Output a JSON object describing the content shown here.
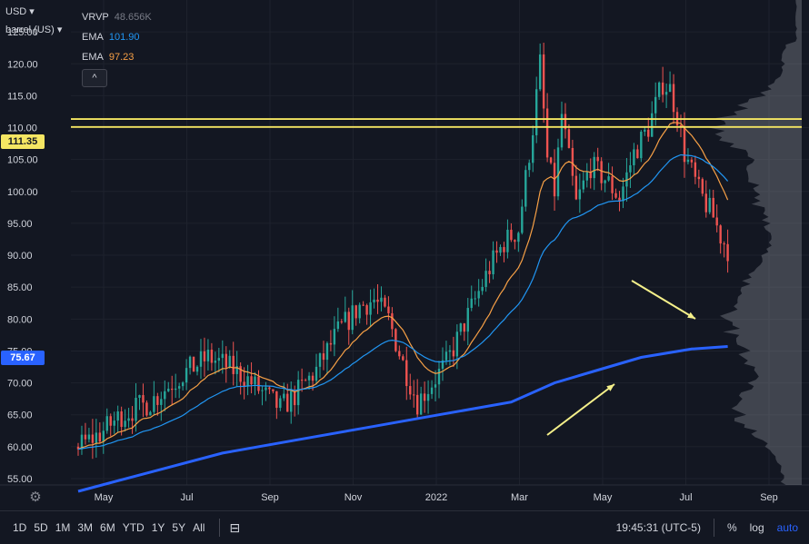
{
  "header": {
    "currency": "USD",
    "unit": "barrel (US)",
    "collapse_symbol": "^"
  },
  "legend": [
    {
      "label": "VRVP",
      "value": "48.656K",
      "color": "#787b86"
    },
    {
      "label": "EMA",
      "value": "101.90",
      "color": "#2196f3"
    },
    {
      "label": "EMA",
      "value": "97.23",
      "color": "#f7a046"
    }
  ],
  "price_tags": [
    {
      "value": "111.35",
      "bg": "#f5e663",
      "fg": "#131722"
    },
    {
      "value": "75.67",
      "bg": "#2962ff",
      "fg": "#ffffff"
    }
  ],
  "toolbar": {
    "timeframes": [
      "1D",
      "5D",
      "1M",
      "3M",
      "6M",
      "YTD",
      "1Y",
      "5Y",
      "All"
    ],
    "clock": "19:45:31 (UTC-5)",
    "percent": "%",
    "log": "log",
    "auto": "auto"
  },
  "colors": {
    "background": "#131722",
    "up": "#26a69a",
    "down": "#ef5350",
    "ema_fast": "#f7a046",
    "ema_slow": "#2196f3",
    "long_ma": "#2962ff",
    "horizontal_lines": "#f5e663",
    "arrows": "#f5f08a",
    "volume_profile": "#9598a1"
  },
  "chart_data": {
    "type": "candlestick",
    "y_ticks": [
      "125.00",
      "120.00",
      "115.00",
      "110.00",
      "105.00",
      "100.00",
      "95.00",
      "90.00",
      "85.00",
      "80.00",
      "75.00",
      "70.00",
      "65.00",
      "60.00",
      "55.00"
    ],
    "ylim": [
      54,
      130
    ],
    "x_labels": [
      "May",
      "Jul",
      "Sep",
      "Nov",
      "2022",
      "Mar",
      "May",
      "Jul",
      "Sep"
    ],
    "horizontal_levels": [
      111.35,
      110.1
    ],
    "close_path": [
      {
        "t": 0,
        "v": 60
      },
      {
        "t": 3,
        "v": 62
      },
      {
        "t": 6,
        "v": 65
      },
      {
        "t": 10,
        "v": 67
      },
      {
        "t": 14,
        "v": 71
      },
      {
        "t": 18,
        "v": 74
      },
      {
        "t": 20,
        "v": 73
      },
      {
        "t": 23,
        "v": 71
      },
      {
        "t": 26,
        "v": 68
      },
      {
        "t": 28,
        "v": 66
      },
      {
        "t": 30,
        "v": 68
      },
      {
        "t": 33,
        "v": 72
      },
      {
        "t": 36,
        "v": 78
      },
      {
        "t": 39,
        "v": 82
      },
      {
        "t": 41,
        "v": 83
      },
      {
        "t": 43,
        "v": 80
      },
      {
        "t": 45,
        "v": 73
      },
      {
        "t": 47,
        "v": 67
      },
      {
        "t": 49,
        "v": 70
      },
      {
        "t": 51,
        "v": 73
      },
      {
        "t": 53,
        "v": 78
      },
      {
        "t": 55,
        "v": 83
      },
      {
        "t": 57,
        "v": 88
      },
      {
        "t": 59,
        "v": 92
      },
      {
        "t": 61,
        "v": 94
      },
      {
        "t": 63,
        "v": 110
      },
      {
        "t": 64,
        "v": 120
      },
      {
        "t": 65,
        "v": 105
      },
      {
        "t": 66,
        "v": 100
      },
      {
        "t": 67,
        "v": 112
      },
      {
        "t": 69,
        "v": 98
      },
      {
        "t": 71,
        "v": 104
      },
      {
        "t": 73,
        "v": 102
      },
      {
        "t": 75,
        "v": 99
      },
      {
        "t": 77,
        "v": 106
      },
      {
        "t": 79,
        "v": 110
      },
      {
        "t": 81,
        "v": 117
      },
      {
        "t": 82,
        "v": 116
      },
      {
        "t": 83,
        "v": 112
      },
      {
        "t": 84,
        "v": 106
      },
      {
        "t": 86,
        "v": 100
      },
      {
        "t": 88,
        "v": 96
      },
      {
        "t": 89,
        "v": 93
      },
      {
        "t": 90,
        "v": 91
      }
    ],
    "long_ma": [
      {
        "t": 0,
        "v": 53
      },
      {
        "t": 10,
        "v": 56
      },
      {
        "t": 20,
        "v": 59
      },
      {
        "t": 30,
        "v": 61
      },
      {
        "t": 40,
        "v": 63
      },
      {
        "t": 50,
        "v": 65
      },
      {
        "t": 60,
        "v": 67
      },
      {
        "t": 66,
        "v": 70
      },
      {
        "t": 72,
        "v": 72
      },
      {
        "t": 78,
        "v": 74
      },
      {
        "t": 85,
        "v": 75.3
      },
      {
        "t": 90,
        "v": 75.7
      }
    ],
    "candles_between": [
      0,
      90
    ],
    "visible_range_x": {
      "start": "Apr 2021",
      "end": "Aug 2022"
    }
  }
}
